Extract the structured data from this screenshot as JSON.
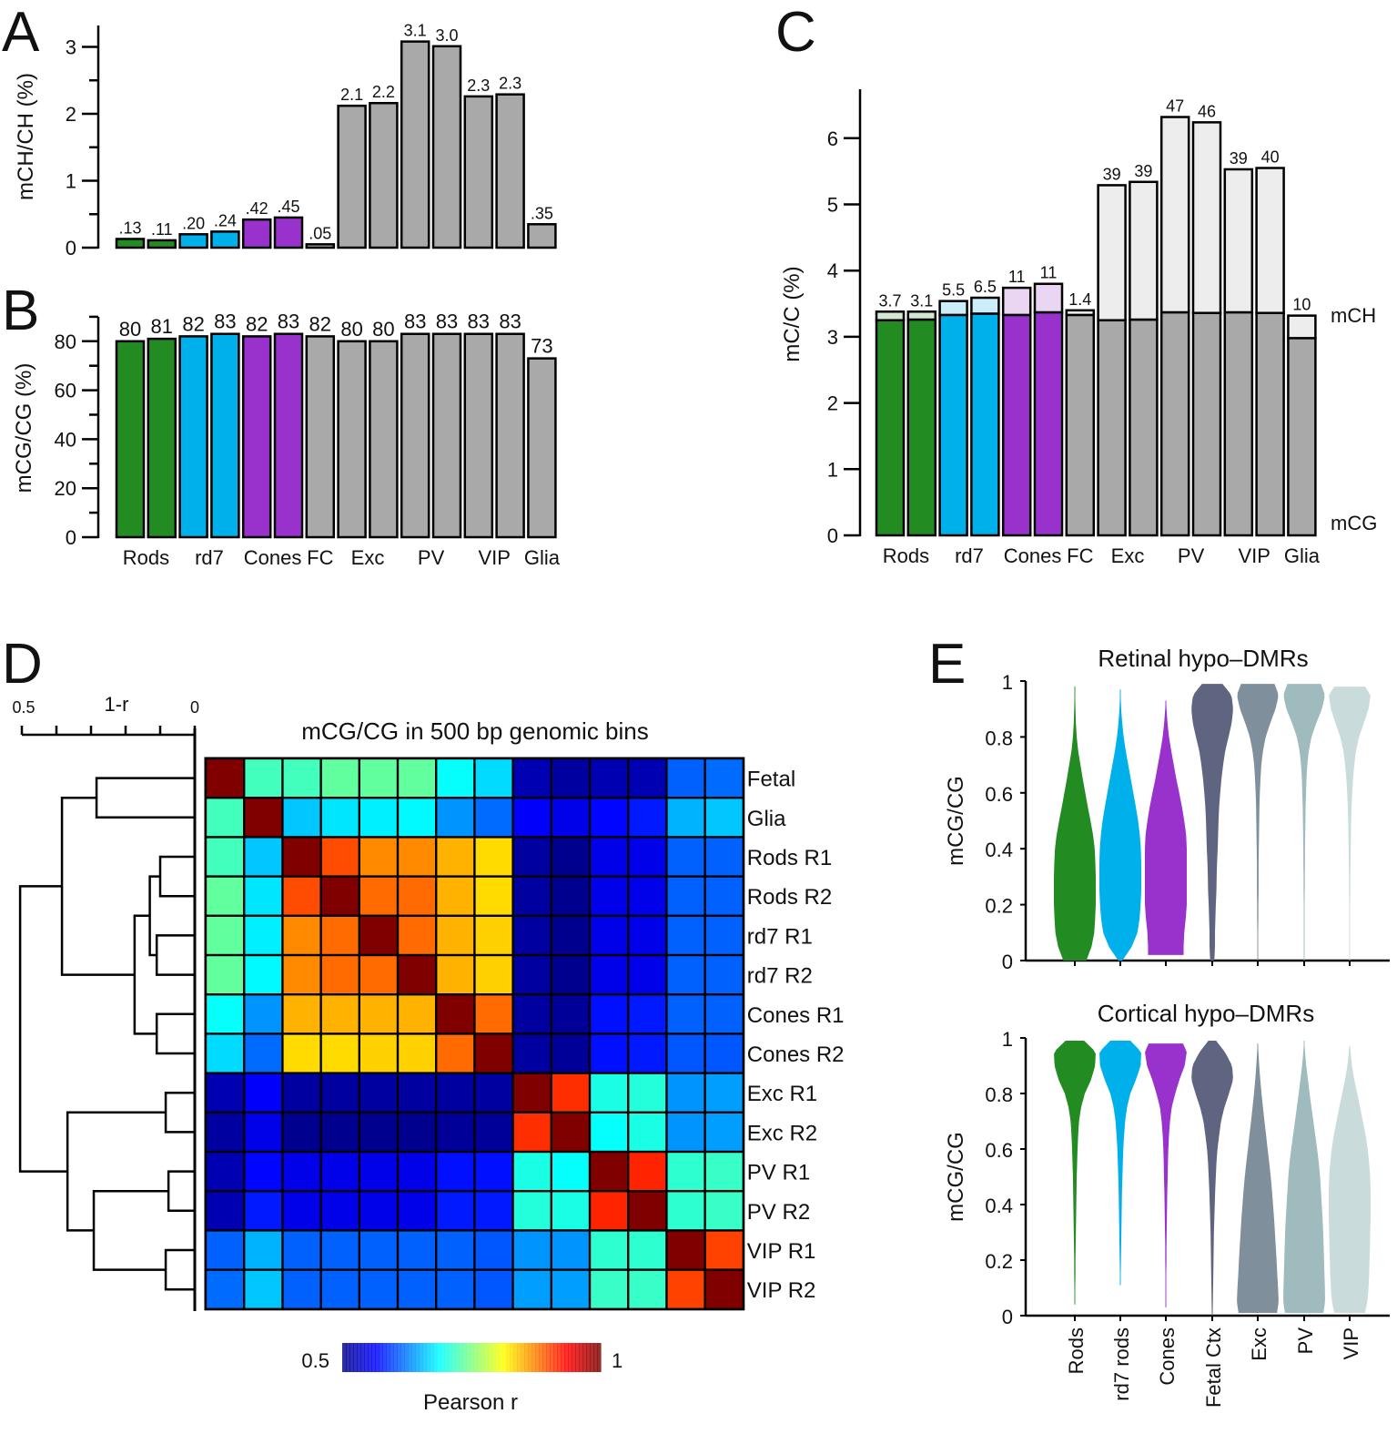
{
  "figure": {
    "panel_letters": [
      "A",
      "B",
      "C",
      "D",
      "E"
    ]
  },
  "colors": {
    "rods": "#228B22",
    "rd7": "#00B0EB",
    "cones": "#9932CC",
    "cortex": "#A9A9A9",
    "rods_light": "#D3E8D3",
    "rd7_light": "#CCEEFA",
    "cones_light": "#EAD5F3",
    "cortex_light": "#EDEDED",
    "fetal_violin": "#5F6480",
    "exc_violin": "#7F909C",
    "pv_violin": "#9FBBBD",
    "vip_violin": "#C9DCDB"
  },
  "chart_data": [
    {
      "id": "A",
      "type": "bar",
      "ylabel": "mCH/CH (%)",
      "ylim": [
        0,
        3.2
      ],
      "yticks": [
        0,
        1,
        2,
        3
      ],
      "bars": [
        "Rods R1",
        "Rods R2",
        "rd7 R1",
        "rd7 R2",
        "Cones R1",
        "Cones R2",
        "FC",
        "Exc R1",
        "Exc R2",
        "PV R1",
        "PV R2",
        "VIP R1",
        "VIP R2",
        "Glia"
      ],
      "groups": [
        "rods",
        "rods",
        "rd7",
        "rd7",
        "cones",
        "cones",
        "cortex",
        "cortex",
        "cortex",
        "cortex",
        "cortex",
        "cortex",
        "cortex",
        "cortex"
      ],
      "values": [
        0.13,
        0.11,
        0.2,
        0.24,
        0.42,
        0.45,
        0.05,
        2.12,
        2.16,
        3.08,
        3.01,
        2.26,
        2.29,
        0.35
      ],
      "labels": [
        ".13",
        ".11",
        ".20",
        ".24",
        ".42",
        ".45",
        ".05",
        "2.1",
        "2.2",
        "3.1",
        "3.0",
        "2.3",
        "2.3",
        ".35"
      ]
    },
    {
      "id": "B",
      "type": "bar",
      "ylabel": "mCG/CG (%)",
      "ylim": [
        0,
        90
      ],
      "yticks": [
        0,
        20,
        40,
        60,
        80
      ],
      "minor_yticks": [
        10,
        30,
        50,
        70,
        90
      ],
      "values": [
        80,
        81,
        82,
        83,
        82,
        83,
        82,
        80,
        80,
        83,
        83,
        83,
        83,
        73
      ],
      "labels": [
        "80",
        "81",
        "82",
        "83",
        "82",
        "83",
        "82",
        "80",
        "80",
        "83",
        "83",
        "83",
        "83",
        "73"
      ],
      "xgroup_labels": [
        "Rods",
        "rd7",
        "Cones",
        "FC",
        "Exc",
        "PV",
        "VIP",
        "Glia"
      ],
      "xgroup_centers": [
        0.5,
        2.5,
        4.5,
        6,
        7.5,
        9.5,
        11.5,
        13
      ]
    },
    {
      "id": "C",
      "type": "bar",
      "stacked": true,
      "ylabel": "mC/C (%)",
      "ylim": [
        0,
        6.7
      ],
      "yticks": [
        0,
        1,
        2,
        3,
        4,
        5,
        6
      ],
      "series": [
        {
          "name": "mCG",
          "values": [
            3.25,
            3.26,
            3.33,
            3.35,
            3.33,
            3.37,
            3.33,
            3.25,
            3.26,
            3.37,
            3.36,
            3.37,
            3.36,
            2.98
          ]
        },
        {
          "name": "mCH",
          "values": [
            0.13,
            0.12,
            0.21,
            0.24,
            0.41,
            0.43,
            0.07,
            2.04,
            2.08,
            2.95,
            2.88,
            2.16,
            2.19,
            0.34
          ]
        }
      ],
      "labels": [
        "3.7",
        "3.1",
        "5.5",
        "6.5",
        "11",
        "11",
        "1.4",
        "39",
        "39",
        "47",
        "46",
        "39",
        "40",
        "10"
      ],
      "series_labels": {
        "top": "mCH",
        "bottom": "mCG"
      },
      "xgroup_labels": [
        "Rods",
        "rd7",
        "Cones",
        "FC",
        "Exc",
        "PV",
        "VIP",
        "Glia"
      ],
      "xgroup_centers": [
        0.5,
        2.5,
        4.5,
        6,
        7.5,
        9.5,
        11.5,
        13
      ]
    },
    {
      "id": "D",
      "type": "heatmap",
      "title": "mCG/CG in 500 bp genomic bins",
      "rows": [
        "Fetal",
        "Glia",
        "Rods R1",
        "Rods R2",
        "rd7 R1",
        "rd7 R2",
        "Cones R1",
        "Cones R2",
        "Exc R1",
        "Exc R2",
        "PV R1",
        "PV R2",
        "VIP R1",
        "VIP R2"
      ],
      "colorbar": {
        "min": 0.5,
        "max": 1,
        "min_label": "0.5",
        "max_label": "1",
        "label": "Pearson r",
        "colormap": "jet"
      },
      "matrix": [
        [
          1.0,
          0.72,
          0.72,
          0.735,
          0.735,
          0.735,
          0.69,
          0.67,
          0.52,
          0.51,
          0.52,
          0.52,
          0.61,
          0.615
        ],
        [
          0.72,
          1.0,
          0.66,
          0.675,
          0.68,
          0.685,
          0.635,
          0.615,
          0.56,
          0.55,
          0.565,
          0.575,
          0.65,
          0.66
        ],
        [
          0.72,
          0.66,
          1.0,
          0.9,
          0.87,
          0.87,
          0.85,
          0.83,
          0.51,
          0.5,
          0.55,
          0.55,
          0.61,
          0.61
        ],
        [
          0.735,
          0.675,
          0.9,
          1.0,
          0.885,
          0.885,
          0.85,
          0.83,
          0.51,
          0.5,
          0.55,
          0.55,
          0.61,
          0.61
        ],
        [
          0.735,
          0.68,
          0.87,
          0.885,
          1.0,
          0.885,
          0.85,
          0.835,
          0.51,
          0.5,
          0.55,
          0.55,
          0.61,
          0.61
        ],
        [
          0.735,
          0.685,
          0.87,
          0.885,
          0.885,
          1.0,
          0.85,
          0.835,
          0.51,
          0.5,
          0.55,
          0.55,
          0.61,
          0.61
        ],
        [
          0.69,
          0.635,
          0.85,
          0.85,
          0.85,
          0.85,
          1.0,
          0.885,
          0.51,
          0.505,
          0.57,
          0.575,
          0.61,
          0.61
        ],
        [
          0.67,
          0.615,
          0.83,
          0.83,
          0.835,
          0.835,
          0.885,
          1.0,
          0.51,
          0.505,
          0.57,
          0.575,
          0.605,
          0.605
        ],
        [
          0.52,
          0.56,
          0.51,
          0.51,
          0.51,
          0.51,
          0.51,
          0.51,
          1.0,
          0.915,
          0.7,
          0.705,
          0.635,
          0.64
        ],
        [
          0.51,
          0.55,
          0.5,
          0.5,
          0.5,
          0.5,
          0.505,
          0.505,
          0.915,
          1.0,
          0.69,
          0.7,
          0.635,
          0.64
        ],
        [
          0.52,
          0.565,
          0.55,
          0.55,
          0.55,
          0.55,
          0.57,
          0.57,
          0.7,
          0.69,
          1.0,
          0.92,
          0.71,
          0.715
        ],
        [
          0.52,
          0.575,
          0.55,
          0.55,
          0.55,
          0.55,
          0.575,
          0.575,
          0.705,
          0.7,
          0.92,
          1.0,
          0.71,
          0.715
        ],
        [
          0.61,
          0.65,
          0.61,
          0.61,
          0.61,
          0.61,
          0.61,
          0.605,
          0.635,
          0.635,
          0.71,
          0.71,
          1.0,
          0.905
        ],
        [
          0.615,
          0.66,
          0.61,
          0.61,
          0.61,
          0.61,
          0.61,
          0.605,
          0.64,
          0.64,
          0.715,
          0.715,
          0.905,
          1.0
        ]
      ],
      "dendrogram": {
        "axis_label": "1-r",
        "axis_range": [
          0.5,
          0
        ],
        "axis_tick_labels": [
          "0.5",
          "0"
        ],
        "merges": [
          {
            "a": 0,
            "b": 1,
            "h": 0.284
          },
          {
            "a": 2,
            "b": 3,
            "h": 0.1
          },
          {
            "a": 4,
            "b": 5,
            "h": 0.11
          },
          {
            "a": 6,
            "b": 7,
            "h": 0.11
          },
          {
            "a": 8,
            "b": 9,
            "h": 0.084
          },
          {
            "a": 10,
            "b": 11,
            "h": 0.076
          },
          {
            "a": 12,
            "b": 13,
            "h": 0.084
          },
          {
            "a": "n1",
            "b": "n2",
            "h": 0.13
          },
          {
            "a": "n7",
            "b": "n3",
            "h": 0.174
          },
          {
            "a": "n5",
            "b": "n6",
            "h": 0.292
          },
          {
            "a": "n0",
            "b": "n8",
            "h": 0.384
          },
          {
            "a": "n4",
            "b": "n9",
            "h": 0.368
          },
          {
            "a": "n10",
            "b": "n11",
            "h": 0.505
          }
        ]
      }
    },
    {
      "id": "E-top",
      "type": "violin",
      "title": "Retinal hypo–DMRs",
      "ylabel": "mCG/CG",
      "ylim": [
        0,
        1
      ],
      "yticks": [
        0,
        0.2,
        0.4,
        0.6,
        0.8,
        1
      ],
      "ytick_labels": [
        "0",
        "0.2",
        "0.4",
        "0.6",
        "0.8",
        "1"
      ],
      "categories": [
        "Rods",
        "rd7 rods",
        "Cones",
        "Fetal Ctx",
        "Exc",
        "PV",
        "VIP"
      ],
      "density_grid": [
        0,
        0.05,
        0.1,
        0.15,
        0.2,
        0.25,
        0.3,
        0.35,
        0.4,
        0.45,
        0.5,
        0.55,
        0.6,
        0.65,
        0.7,
        0.75,
        0.8,
        0.85,
        0.9,
        0.95,
        1.0
      ],
      "violins": [
        {
          "name": "Rods",
          "color_key": "rods",
          "min": 0.0,
          "max": 0.98,
          "density": [
            0.55,
            0.8,
            0.93,
            0.97,
            1.0,
            1.0,
            1.0,
            0.98,
            0.95,
            0.87,
            0.75,
            0.62,
            0.5,
            0.38,
            0.27,
            0.16,
            0.09,
            0.05,
            0.03,
            0.015,
            0.0
          ]
        },
        {
          "name": "rd7 rods",
          "color_key": "rd7",
          "min": 0.0,
          "max": 0.97,
          "density": [
            0.1,
            0.55,
            0.82,
            0.92,
            0.97,
            1.0,
            1.0,
            1.0,
            0.98,
            0.93,
            0.85,
            0.74,
            0.62,
            0.5,
            0.38,
            0.26,
            0.16,
            0.09,
            0.04,
            0.015,
            0.0
          ]
        },
        {
          "name": "Cones",
          "color_key": "cones",
          "min": 0.02,
          "max": 0.93,
          "density": [
            0.85,
            0.85,
            0.88,
            0.95,
            1.0,
            1.0,
            1.0,
            1.0,
            1.0,
            0.97,
            0.88,
            0.77,
            0.64,
            0.5,
            0.38,
            0.26,
            0.15,
            0.08,
            0.03,
            0.0,
            0.0
          ]
        },
        {
          "name": "Fetal Ctx",
          "color_key": "fetal_violin",
          "min": 0.0,
          "max": 0.99,
          "density": [
            0.1,
            0.13,
            0.13,
            0.15,
            0.17,
            0.2,
            0.21,
            0.23,
            0.26,
            0.28,
            0.3,
            0.33,
            0.38,
            0.44,
            0.52,
            0.62,
            0.78,
            0.93,
            1.0,
            0.92,
            0.38
          ]
        },
        {
          "name": "Exc",
          "color_key": "exc_violin",
          "min": 0.0,
          "max": 0.99,
          "density": [
            0.02,
            0.02,
            0.02,
            0.03,
            0.03,
            0.04,
            0.04,
            0.04,
            0.05,
            0.06,
            0.07,
            0.08,
            0.1,
            0.13,
            0.17,
            0.25,
            0.38,
            0.6,
            0.85,
            1.0,
            0.75
          ]
        },
        {
          "name": "PV",
          "color_key": "pv_violin",
          "min": 0.0,
          "max": 0.99,
          "density": [
            0.015,
            0.015,
            0.02,
            0.02,
            0.02,
            0.03,
            0.03,
            0.04,
            0.04,
            0.05,
            0.06,
            0.07,
            0.09,
            0.11,
            0.15,
            0.22,
            0.35,
            0.58,
            0.85,
            1.0,
            0.75
          ]
        },
        {
          "name": "VIP",
          "color_key": "vip_violin",
          "min": 0.0,
          "max": 0.98,
          "density": [
            0.015,
            0.015,
            0.02,
            0.02,
            0.02,
            0.03,
            0.03,
            0.04,
            0.05,
            0.06,
            0.07,
            0.09,
            0.12,
            0.16,
            0.22,
            0.3,
            0.45,
            0.68,
            0.9,
            1.0,
            0.55
          ]
        }
      ]
    },
    {
      "id": "E-bottom",
      "type": "violin",
      "title": "Cortical hypo–DMRs",
      "ylabel": "mCG/CG",
      "ylim": [
        0,
        1
      ],
      "yticks": [
        0,
        0.2,
        0.4,
        0.6,
        0.8,
        1
      ],
      "ytick_labels": [
        "0",
        "0.2",
        "0.4",
        "0.6",
        "0.8",
        "1"
      ],
      "categories": [
        "Rods",
        "rd7 rods",
        "Cones",
        "Fetal Ctx",
        "Exc",
        "PV",
        "VIP"
      ],
      "density_grid": [
        0,
        0.05,
        0.1,
        0.15,
        0.2,
        0.25,
        0.3,
        0.35,
        0.4,
        0.45,
        0.5,
        0.55,
        0.6,
        0.65,
        0.7,
        0.75,
        0.8,
        0.85,
        0.9,
        0.95,
        1.0
      ],
      "violins": [
        {
          "name": "Rods",
          "color_key": "rods",
          "min": 0.04,
          "max": 0.99,
          "density": [
            0.0,
            0.02,
            0.02,
            0.03,
            0.03,
            0.04,
            0.05,
            0.06,
            0.07,
            0.08,
            0.09,
            0.11,
            0.13,
            0.16,
            0.2,
            0.3,
            0.48,
            0.78,
            0.97,
            1.0,
            0.3
          ]
        },
        {
          "name": "rd7 rods",
          "color_key": "rd7",
          "min": 0.11,
          "max": 0.99,
          "density": [
            0.0,
            0.0,
            0.0,
            0.02,
            0.03,
            0.04,
            0.05,
            0.06,
            0.07,
            0.08,
            0.1,
            0.12,
            0.14,
            0.18,
            0.23,
            0.32,
            0.48,
            0.75,
            0.97,
            1.0,
            0.35
          ]
        },
        {
          "name": "Cones",
          "color_key": "cones",
          "min": 0.03,
          "max": 0.98,
          "density": [
            0.0,
            0.015,
            0.02,
            0.02,
            0.03,
            0.03,
            0.04,
            0.05,
            0.06,
            0.07,
            0.09,
            0.1,
            0.12,
            0.15,
            0.2,
            0.28,
            0.45,
            0.65,
            0.9,
            1.0,
            0.7
          ]
        },
        {
          "name": "Fetal Ctx",
          "color_key": "fetal_violin",
          "min": 0.0,
          "max": 0.99,
          "density": [
            0.02,
            0.03,
            0.04,
            0.05,
            0.06,
            0.07,
            0.08,
            0.1,
            0.12,
            0.14,
            0.17,
            0.2,
            0.25,
            0.33,
            0.42,
            0.58,
            0.8,
            1.0,
            0.95,
            0.6,
            0.08
          ]
        },
        {
          "name": "Exc",
          "color_key": "exc_violin",
          "min": 0.01,
          "max": 0.98,
          "density": [
            0.9,
            1.0,
            0.97,
            0.93,
            0.9,
            0.86,
            0.82,
            0.78,
            0.73,
            0.68,
            0.62,
            0.55,
            0.47,
            0.4,
            0.32,
            0.25,
            0.18,
            0.12,
            0.07,
            0.03,
            0.0
          ]
        },
        {
          "name": "PV",
          "color_key": "pv_violin",
          "min": 0.01,
          "max": 0.99,
          "density": [
            0.9,
            1.0,
            0.99,
            0.97,
            0.95,
            0.93,
            0.91,
            0.88,
            0.84,
            0.8,
            0.76,
            0.7,
            0.62,
            0.53,
            0.44,
            0.35,
            0.26,
            0.18,
            0.1,
            0.04,
            0.0
          ]
        },
        {
          "name": "VIP",
          "color_key": "vip_violin",
          "min": 0.01,
          "max": 0.97,
          "density": [
            0.7,
            0.85,
            0.9,
            0.93,
            0.95,
            0.97,
            0.98,
            1.0,
            1.0,
            1.0,
            0.98,
            0.93,
            0.86,
            0.76,
            0.63,
            0.5,
            0.36,
            0.22,
            0.11,
            0.04,
            0.0
          ]
        }
      ]
    }
  ]
}
